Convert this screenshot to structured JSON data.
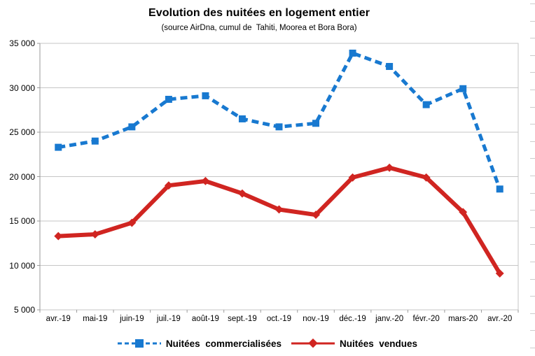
{
  "title": "Evolution des nuitées en logement entier",
  "subtitle": "(source AirDna, cumul de  Tahiti, Moorea et Bora Bora)",
  "legend": {
    "commercialisees_label": "Nuitées  commercialisées",
    "vendues_label": "Nuitées  vendues"
  },
  "colors": {
    "blue_series": "#1879d0",
    "red_series": "#d02521",
    "gridline": "#c6c6c6",
    "axis_line": "#9a9a9a",
    "edge_tick": "#cccccc"
  },
  "chart_data": {
    "type": "line",
    "title": "Evolution des nuitées en logement entier",
    "subtitle": "(source AirDna, cumul de  Tahiti, Moorea et Bora Bora)",
    "categories": [
      "avr.-19",
      "mai-19",
      "juin-19",
      "juil.-19",
      "août-19",
      "sept.-19",
      "oct.-19",
      "nov.-19",
      "déc.-19",
      "janv.-20",
      "févr.-20",
      "mars-20",
      "avr.-20"
    ],
    "series": [
      {
        "name": "Nuitées commercialisées",
        "color": "#1879d0",
        "line_style": "dashed",
        "marker": "square",
        "values": [
          23300,
          24000,
          25600,
          28700,
          29100,
          26500,
          25600,
          26000,
          33900,
          32400,
          28100,
          29900,
          18600
        ]
      },
      {
        "name": "Nuitées vendues",
        "color": "#d02521",
        "line_style": "solid",
        "marker": "diamond",
        "values": [
          13300,
          13500,
          14800,
          19000,
          19500,
          18100,
          16300,
          15700,
          19900,
          21000,
          19900,
          16000,
          9100
        ]
      }
    ],
    "ylim": [
      5000,
      35000
    ],
    "ytick_step": 5000,
    "ytick_labels_top_to_bottom": [
      "35 000",
      "30 000",
      "25 000",
      "20 000",
      "15 000",
      "10 000",
      "5 000"
    ],
    "xlabel": "",
    "ylabel": "",
    "grid": true,
    "legend_position": "bottom"
  }
}
